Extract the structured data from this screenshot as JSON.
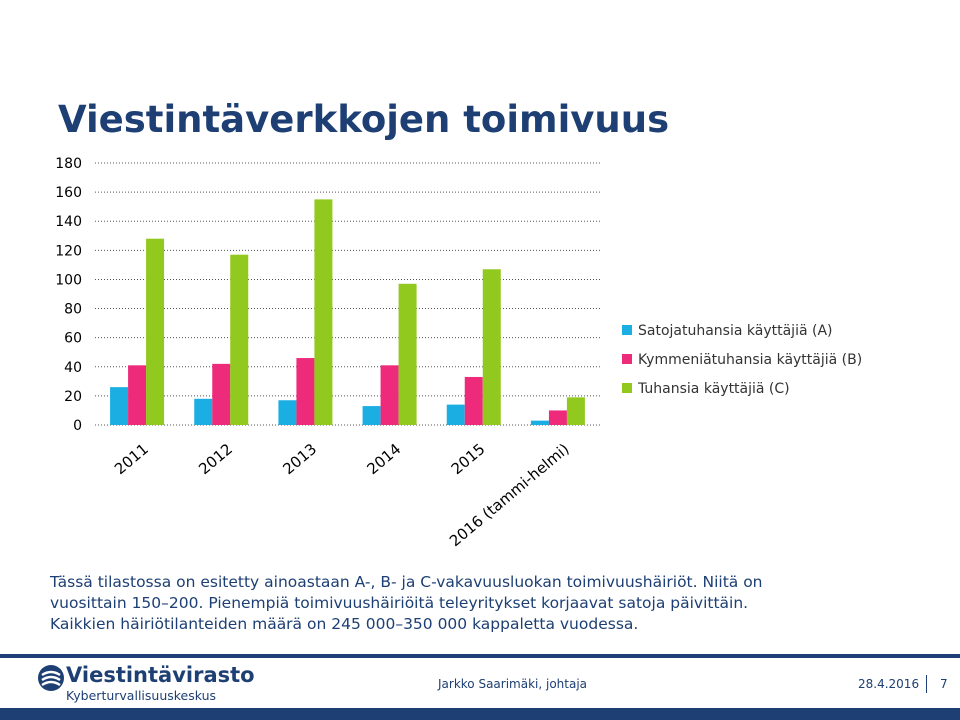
{
  "slide": {
    "title": "Viestintäverkkojen toimivuus",
    "body_lines": [
      "Tässä tilastossa on esitetty ainoastaan A-, B- ja C-vakavuusluokan toimivuushäiriöt. Niitä on",
      "vuosittain 150–200. Pienempiä toimivuushäiriöitä teleyritykset korjaavat satoja päivittäin.",
      "Kaikkien häiriötilanteiden määrä on 245 000–350 000 kappaletta vuodessa."
    ]
  },
  "footer": {
    "logo_main": "Viestintävirasto",
    "logo_sub": "Kyberturvallisuuskeskus",
    "presenter": "Jarkko Saarimäki, johtaja",
    "date": "28.4.2016",
    "page": "7",
    "brand_color": "#1d3f73"
  },
  "chart_data": {
    "type": "bar",
    "categories": [
      "2011",
      "2012",
      "2013",
      "2014",
      "2015",
      "2016 (tammi-helmi)"
    ],
    "series": [
      {
        "name": "Satojatuhansia käyttäjiä (A)",
        "color": "#1aaee3",
        "values": [
          26,
          18,
          17,
          13,
          14,
          3
        ]
      },
      {
        "name": "Kymmeniätuhansia käyttäjiä (B)",
        "color": "#ee2a7b",
        "values": [
          41,
          42,
          46,
          41,
          33,
          10
        ]
      },
      {
        "name": "Tuhansia käyttäjiä (C)",
        "color": "#92c91f",
        "values": [
          128,
          117,
          155,
          97,
          107,
          19
        ]
      }
    ],
    "yticks": [
      0,
      20,
      40,
      60,
      80,
      100,
      120,
      140,
      160,
      180
    ],
    "ylim": [
      0,
      180
    ],
    "grid": true,
    "legend_position": "right"
  }
}
